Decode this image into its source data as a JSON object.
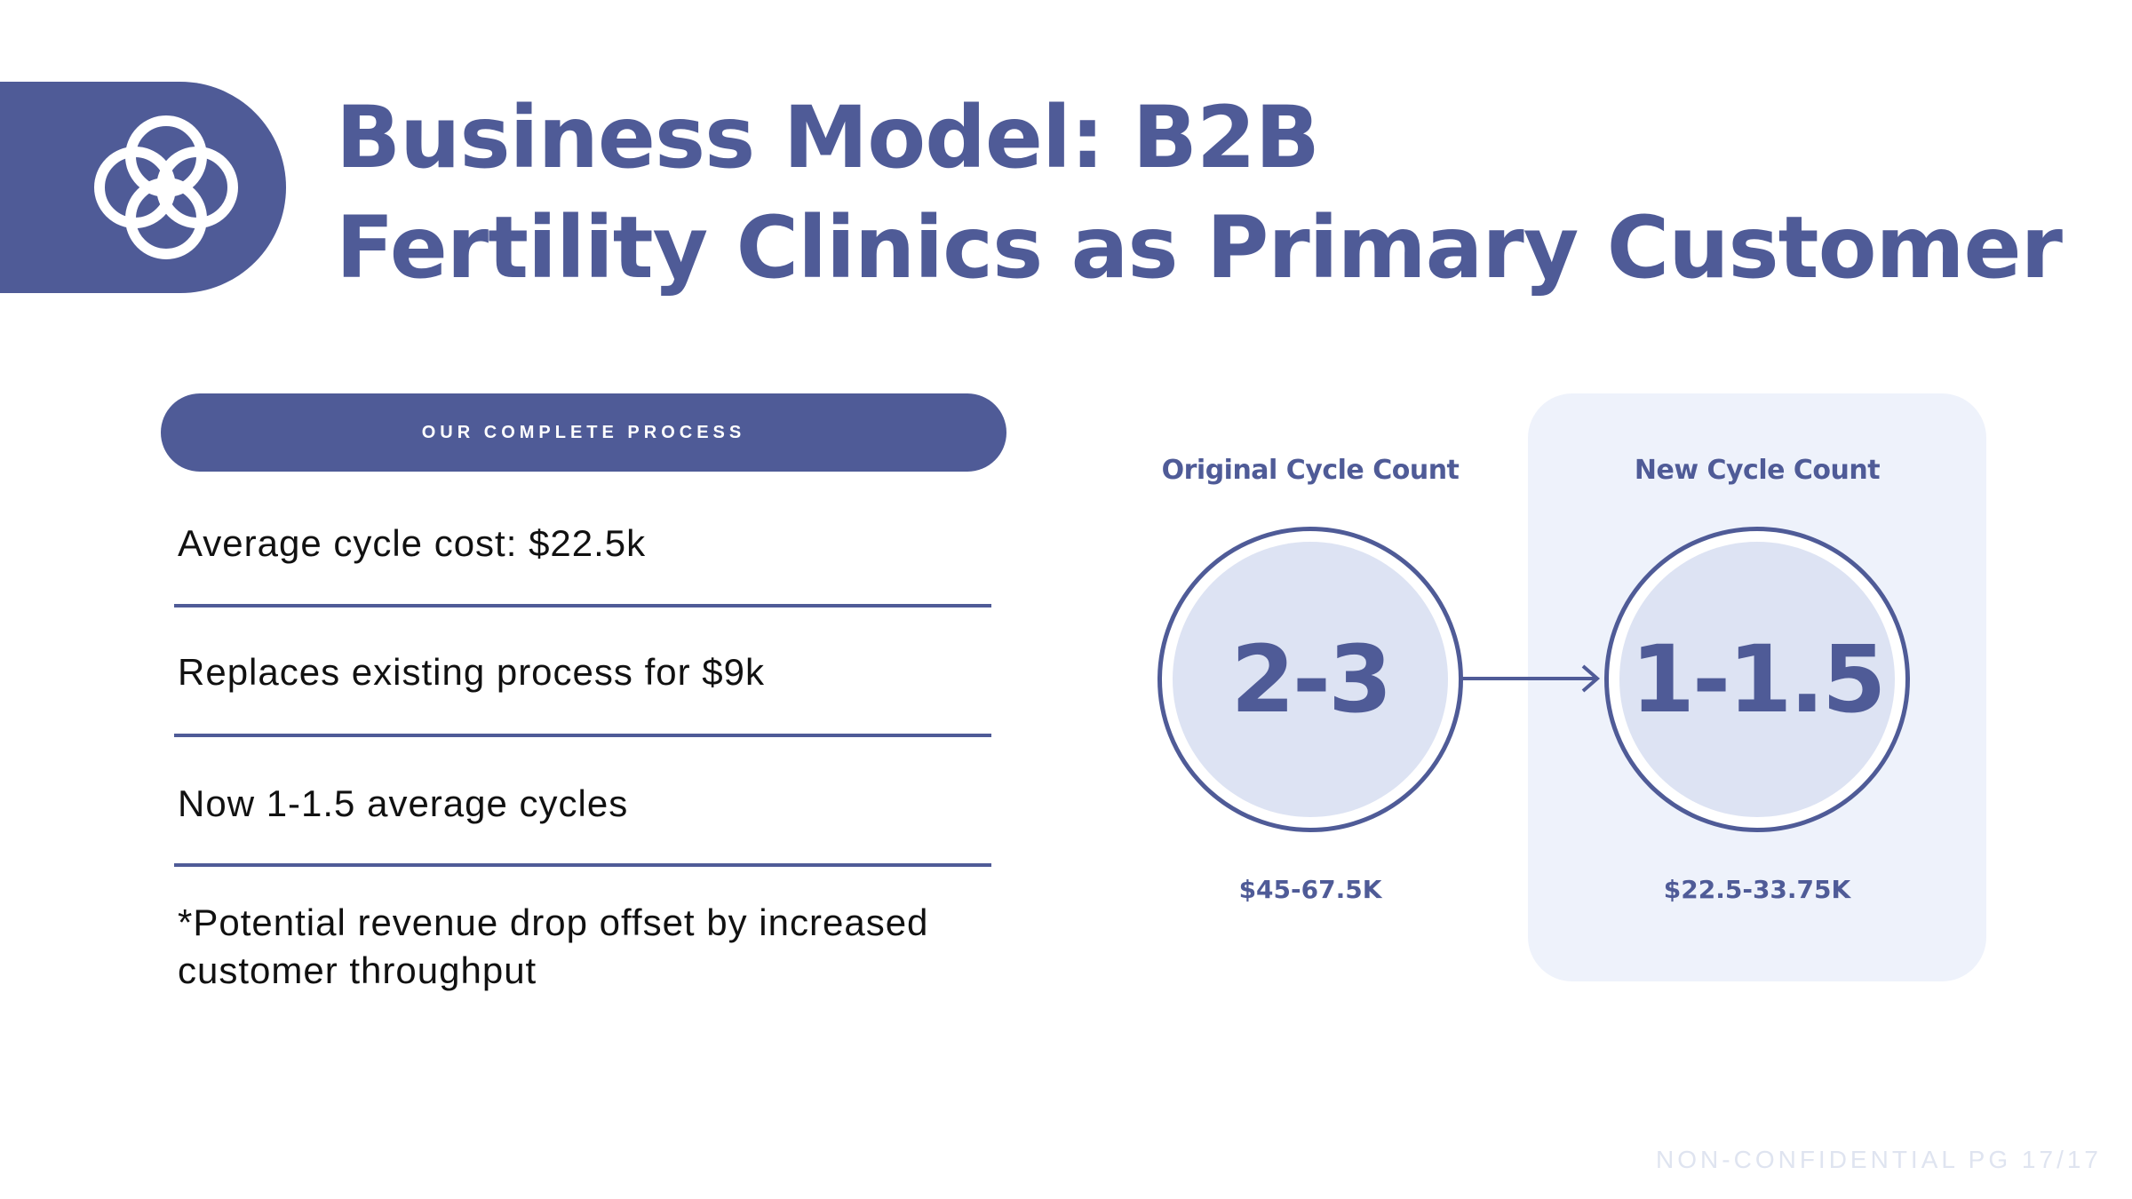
{
  "header": {
    "title_line1": "Business Model: B2B",
    "title_line2": "Fertility Clinics as Primary Customer",
    "logo_icon": "interlocking-rings-icon"
  },
  "process": {
    "pill_label": "OUR COMPLETE PROCESS",
    "items": [
      "Average cycle cost: $22.5k",
      "Replaces existing process for $9k",
      "Now 1-1.5 average cycles",
      "*Potential revenue drop offset by increased customer throughput"
    ]
  },
  "comparison": {
    "original": {
      "label": "Original Cycle Count",
      "value": "2-3",
      "price": "$45-67.5K"
    },
    "new": {
      "label": "New Cycle Count",
      "value": "1-1.5",
      "price": "$22.5-33.75K"
    },
    "arrow_icon": "arrow-right-icon"
  },
  "footer": {
    "text": "NON-CONFIDENTIAL PG 17/17"
  },
  "colors": {
    "brand": "#4f5b97",
    "panel": "#eef2fb",
    "circle_fill": "#dde3f3"
  }
}
